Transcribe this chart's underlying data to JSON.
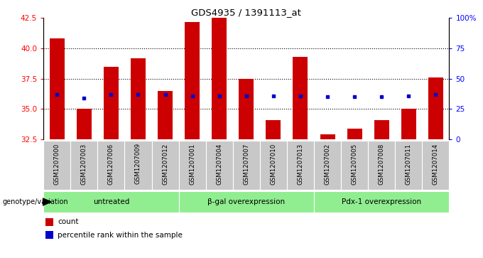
{
  "title": "GDS4935 / 1391113_at",
  "samples": [
    "GSM1207000",
    "GSM1207003",
    "GSM1207006",
    "GSM1207009",
    "GSM1207012",
    "GSM1207001",
    "GSM1207004",
    "GSM1207007",
    "GSM1207010",
    "GSM1207013",
    "GSM1207002",
    "GSM1207005",
    "GSM1207008",
    "GSM1207011",
    "GSM1207014"
  ],
  "counts": [
    40.8,
    35.0,
    38.5,
    39.2,
    36.5,
    42.2,
    42.5,
    37.5,
    34.1,
    39.3,
    32.9,
    33.4,
    34.1,
    35.0,
    37.6
  ],
  "percentile_ranks": [
    36.2,
    35.9,
    36.2,
    36.2,
    36.2,
    36.1,
    36.1,
    36.1,
    36.1,
    36.1,
    36.0,
    36.0,
    36.0,
    36.1,
    36.2
  ],
  "groups": [
    {
      "label": "untreated",
      "start": 0,
      "end": 5
    },
    {
      "label": "β-gal overexpression",
      "start": 5,
      "end": 10
    },
    {
      "label": "Pdx-1 overexpression",
      "start": 10,
      "end": 15
    }
  ],
  "ymin": 32.5,
  "ymax": 42.5,
  "yticks": [
    32.5,
    35.0,
    37.5,
    40.0,
    42.5
  ],
  "right_yticks": [
    0,
    25,
    50,
    75,
    100
  ],
  "right_yticklabels": [
    "0",
    "25",
    "50",
    "75",
    "100%"
  ],
  "bar_color": "#cc0000",
  "blue_color": "#0000cc",
  "bar_width": 0.55,
  "bg_color": "#c8c8c8",
  "group_bg_color": "#90ee90",
  "baseline": 32.5,
  "grid_yticks": [
    35.0,
    37.5,
    40.0
  ],
  "legend_count_color": "#cc0000",
  "legend_pct_color": "#0000cc"
}
